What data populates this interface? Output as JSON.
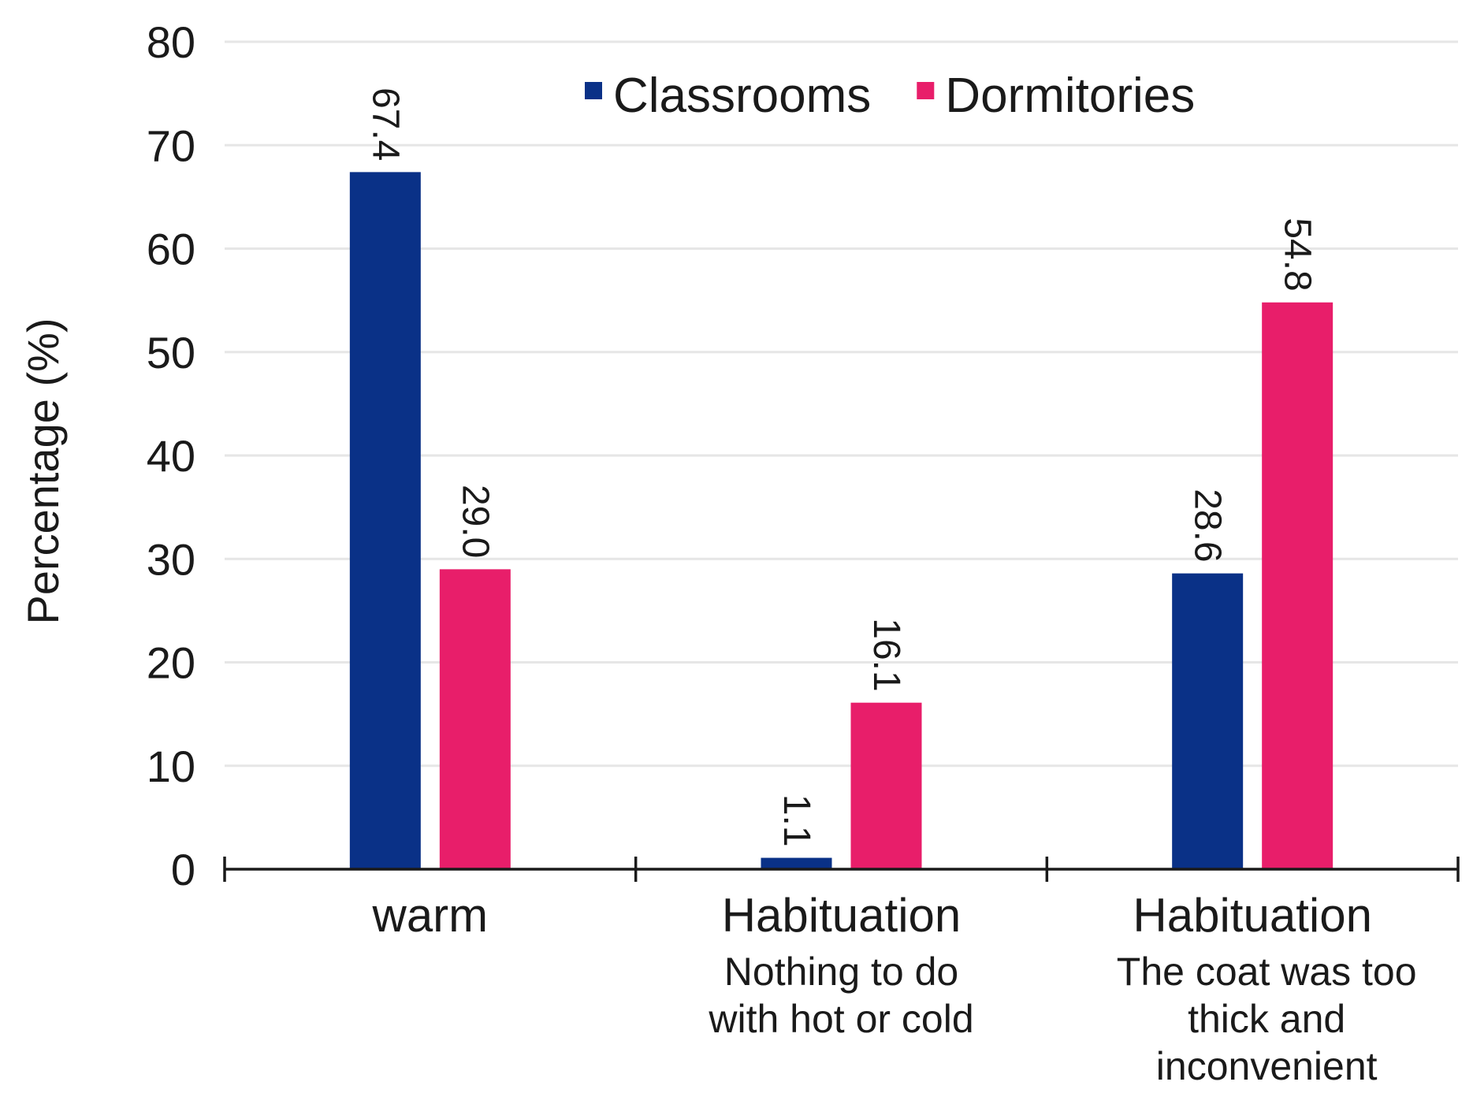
{
  "chart_data": {
    "type": "bar",
    "title": "",
    "xlabel": "",
    "ylabel": "Percentage (%)",
    "ylim": [
      0,
      80
    ],
    "yticks": [
      0,
      10,
      20,
      30,
      40,
      50,
      60,
      70,
      80
    ],
    "grid": true,
    "legend_position": "top-right",
    "categories": [
      {
        "main": "warm",
        "sub": []
      },
      {
        "main": "Habituation",
        "sub": [
          "Nothing to do",
          "with hot or cold"
        ]
      },
      {
        "main": "Habituation",
        "sub": [
          "The coat was too",
          "thick and",
          "inconvenient"
        ]
      }
    ],
    "series": [
      {
        "name": "Classrooms",
        "color": "#0a3187",
        "values": [
          67.4,
          1.1,
          28.6
        ],
        "labels": [
          "67.4",
          "1.1",
          "28.6"
        ]
      },
      {
        "name": "Dormitories",
        "color": "#e81e6a",
        "values": [
          29.0,
          16.1,
          54.8
        ],
        "labels": [
          "29.0",
          "16.1",
          "54.8"
        ]
      }
    ]
  }
}
